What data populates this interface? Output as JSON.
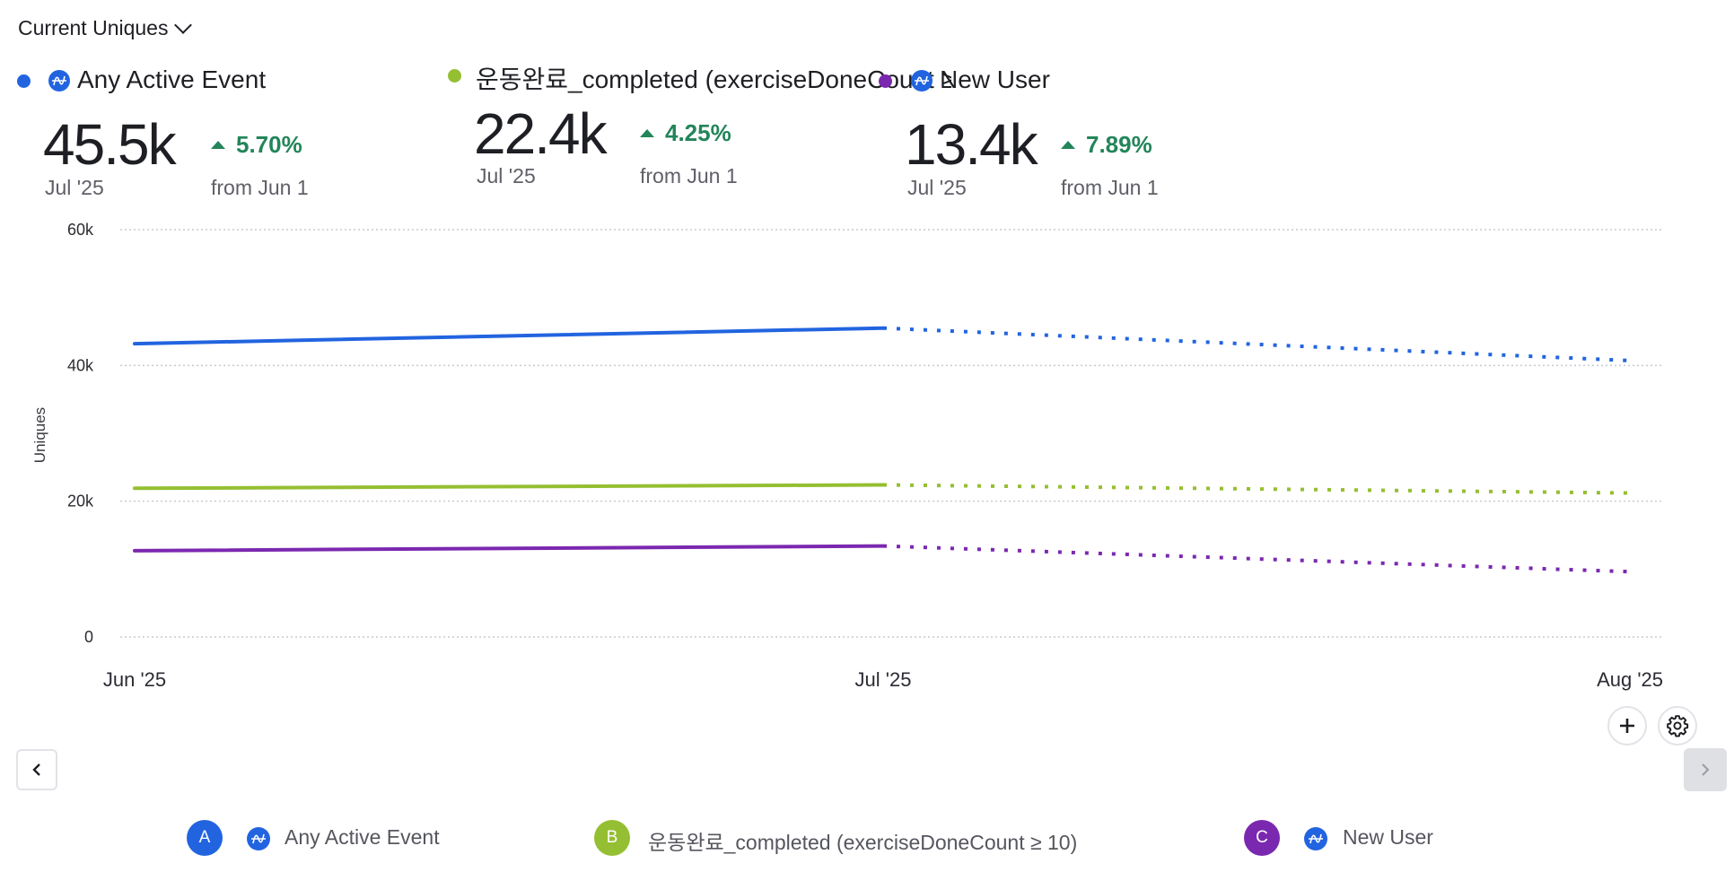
{
  "header": {
    "metric_selector": "Current Uniques",
    "metric_selector_icon": "chevron-down-icon"
  },
  "cards": [
    {
      "label": "Any Active Event",
      "color": "#2264e0",
      "icon": "amplitude-icon",
      "value": "45.5k",
      "period": "Jul '25",
      "delta": "5.70%",
      "delta_direction": "up",
      "delta_color": "#23855a",
      "comparison": "from Jun 1"
    },
    {
      "label": "운동완료_completed (exerciseDoneCount ≥",
      "color": "#95bf32",
      "value": "22.4k",
      "period": "Jul '25",
      "delta": "4.25%",
      "delta_direction": "up",
      "delta_color": "#23855a",
      "comparison": "from Jun 1"
    },
    {
      "label": "New User",
      "color": "#7b28b0",
      "icon": "amplitude-icon",
      "value": "13.4k",
      "period": "Jul '25",
      "delta": "7.89%",
      "delta_direction": "up",
      "delta_color": "#23855a",
      "comparison": "from Jun 1"
    }
  ],
  "chart_data": {
    "type": "line",
    "title": "",
    "xlabel": "",
    "ylabel": "Uniques",
    "x": [
      "Jun '25",
      "Jul '25",
      "Aug '25"
    ],
    "ylim": [
      0,
      60000
    ],
    "yticks": [
      0,
      20000,
      40000,
      60000
    ],
    "ytick_labels": [
      "0",
      "20k",
      "40k",
      "60k"
    ],
    "grid": true,
    "incomplete_from_index": 1,
    "series": [
      {
        "name": "Any Active Event",
        "color": "#2264e0",
        "values": [
          43200,
          45500,
          40700
        ]
      },
      {
        "name": "운동완료_completed (exerciseDoneCount ≥ 10)",
        "color": "#95bf32",
        "values": [
          21900,
          22400,
          21200
        ]
      },
      {
        "name": "New User",
        "color": "#7b28b0",
        "values": [
          12700,
          13400,
          9600
        ]
      }
    ]
  },
  "controls": {
    "add_icon": "plus-icon",
    "settings_icon": "gear-icon",
    "prev_icon": "chevron-left-icon",
    "next_icon": "chevron-right-icon"
  },
  "legend": [
    {
      "letter": "A",
      "label": "Any Active Event",
      "color": "#2264e0",
      "icon": "amplitude-icon"
    },
    {
      "letter": "B",
      "label": "운동완료_completed (exerciseDoneCount ≥ 10)",
      "color": "#95bf32"
    },
    {
      "letter": "C",
      "label": "New User",
      "color": "#7b28b0",
      "icon": "amplitude-icon"
    }
  ]
}
